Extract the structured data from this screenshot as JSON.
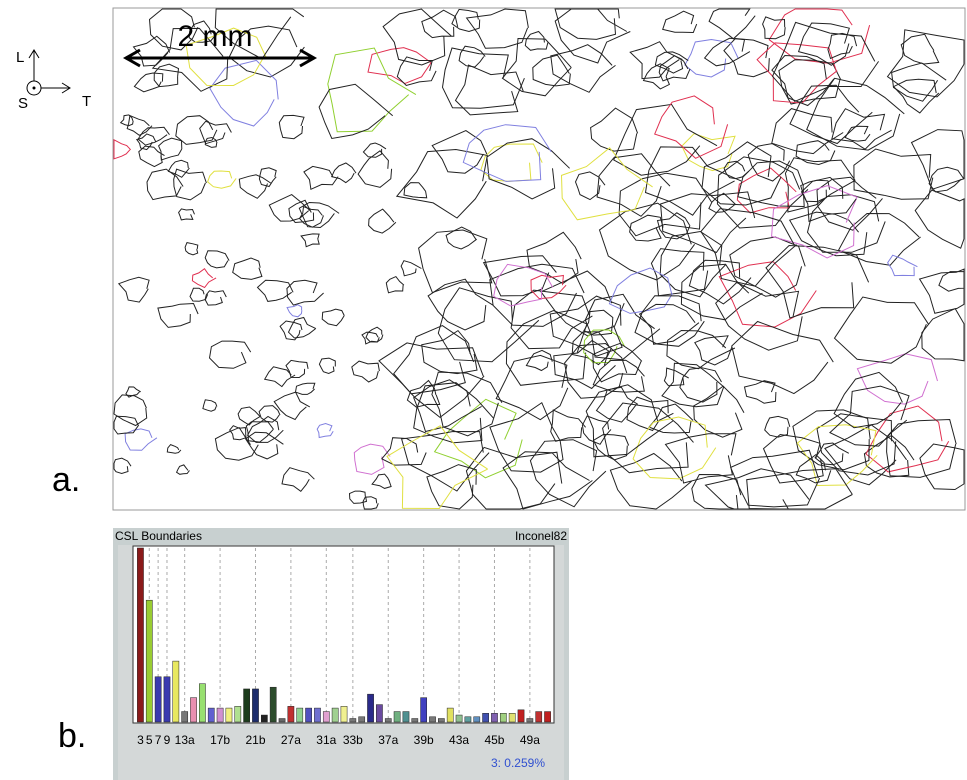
{
  "figure": {
    "panel_a": "a.",
    "panel_b": "b.",
    "scale_bar": "2 mm",
    "axis_l": "L",
    "axis_s": "S",
    "axis_t": "T"
  },
  "chart_data": {
    "type": "bar",
    "title": "CSL Boundaries",
    "subtitle": "Inconel82",
    "annotation": "3: 0.259%",
    "categories": [
      "3",
      "5",
      "7",
      "9",
      null,
      "13a",
      null,
      null,
      null,
      "17b",
      null,
      null,
      null,
      "21b",
      null,
      null,
      null,
      "27a",
      null,
      null,
      null,
      "31a",
      null,
      null,
      "33b",
      null,
      null,
      null,
      "37a",
      null,
      null,
      null,
      "39b",
      null,
      null,
      null,
      "43a",
      null,
      null,
      null,
      "45b",
      null,
      null,
      null,
      "49a",
      null,
      null
    ],
    "values": [
      100,
      70,
      26,
      26,
      35,
      6,
      14,
      22,
      8,
      8,
      8,
      9,
      19,
      19,
      4,
      20,
      2,
      9,
      8,
      8,
      8,
      6,
      8,
      9,
      2,
      3,
      16,
      10,
      2,
      6,
      6,
      2,
      14,
      3,
      2,
      8,
      4,
      3,
      3,
      5,
      5,
      5,
      5,
      7,
      2,
      6,
      6
    ],
    "colors": [
      "#8b1a1a",
      "#9acd32",
      "#3a3ab0",
      "#3a3ab0",
      "#e8e860",
      "#777777",
      "#e890b0",
      "#98e070",
      "#6060d0",
      "#d090d0",
      "#f0f080",
      "#b0e090",
      "#1c3c1c",
      "#1c2c6c",
      "#222222",
      "#2c4c2c",
      "#666666",
      "#c03030",
      "#90d090",
      "#5050c0",
      "#7070d0",
      "#e0a0d0",
      "#a0d090",
      "#f0f090",
      "#777777",
      "#777777",
      "#2a2a8a",
      "#6a4aa0",
      "#777777",
      "#70b080",
      "#509090",
      "#777777",
      "#4040c0",
      "#777777",
      "#777777",
      "#e0e060",
      "#90c090",
      "#60a0a0",
      "#6090c0",
      "#4050b0",
      "#8060b0",
      "#a0d080",
      "#e0e070",
      "#c02020",
      "#777777",
      "#c03030",
      "#c02020"
    ],
    "ylim": [
      0,
      100
    ]
  }
}
